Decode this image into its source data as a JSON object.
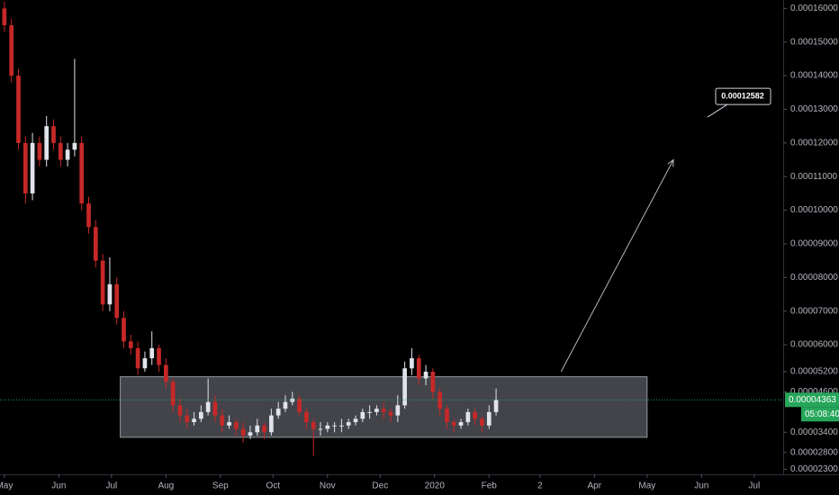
{
  "chart_data": {
    "type": "candlestick",
    "x": [
      0,
      4,
      8,
      12,
      16,
      20,
      24,
      28,
      32,
      36,
      40,
      44,
      48,
      52,
      56,
      60,
      64,
      68,
      72,
      76,
      80,
      84,
      88,
      92,
      96,
      100,
      104,
      108,
      112,
      116,
      120,
      124,
      128,
      132,
      136,
      140,
      144,
      148,
      152,
      156,
      160,
      164,
      168,
      172,
      176,
      180,
      184,
      188,
      192,
      196,
      200,
      204,
      208,
      212,
      216,
      220,
      224,
      228,
      232,
      236,
      240,
      244,
      248,
      252,
      256,
      260,
      264,
      268,
      272,
      276,
      280
    ],
    "open": [
      0.00016,
      0.000155,
      0.00014,
      0.00012,
      0.000105,
      0.00012,
      0.000115,
      0.000125,
      0.00012,
      0.000115,
      0.000118,
      0.00012,
      0.000102,
      9.5e-05,
      8.5e-05,
      7.2e-05,
      7.8e-05,
      6.8e-05,
      6.1e-05,
      5.9e-05,
      5.3e-05,
      5.6e-05,
      5.9e-05,
      5.4e-05,
      4.9e-05,
      4.2e-05,
      3.9e-05,
      3.7e-05,
      3.8e-05,
      4e-05,
      4.3e-05,
      3.9e-05,
      3.6e-05,
      3.7e-05,
      3.5e-05,
      3.3e-05,
      3.4e-05,
      3.6e-05,
      3.4e-05,
      3.9e-05,
      4.1e-05,
      4.3e-05,
      4.4e-05,
      4e-05,
      3.7e-05,
      3.5e-05,
      3.5e-05,
      3.6e-05,
      3.6e-05,
      3.6e-05,
      3.7e-05,
      3.8e-05,
      4e-05,
      4e-05,
      4.1e-05,
      4e-05,
      3.9e-05,
      4.2e-05,
      5.3e-05,
      5.6e-05,
      5e-05,
      5.2e-05,
      4.6e-05,
      4.1e-05,
      3.7e-05,
      3.6e-05,
      3.7e-05,
      4e-05,
      3.8e-05,
      3.6e-05,
      4e-05
    ],
    "high": [
      0.000162,
      0.000157,
      0.000142,
      0.000122,
      0.000123,
      0.000122,
      0.000128,
      0.000127,
      0.000122,
      0.00012,
      0.000145,
      0.000122,
      0.000104,
      9.7e-05,
      8.7e-05,
      8.6e-05,
      8e-05,
      7e-05,
      6.3e-05,
      6.1e-05,
      5.8e-05,
      6.4e-05,
      6e-05,
      5.6e-05,
      5e-05,
      4.4e-05,
      4.1e-05,
      4e-05,
      4.2e-05,
      5e-05,
      4.5e-05,
      4.1e-05,
      3.9e-05,
      3.8e-05,
      3.7e-05,
      3.6e-05,
      3.8e-05,
      3.7e-05,
      4.1e-05,
      4.3e-05,
      4.5e-05,
      4.6e-05,
      4.5e-05,
      4.1e-05,
      3.8e-05,
      3.7e-05,
      3.7e-05,
      3.7e-05,
      3.8e-05,
      3.8e-05,
      3.9e-05,
      4.1e-05,
      4.2e-05,
      4.2e-05,
      4.3e-05,
      4.1e-05,
      4.5e-05,
      5.5e-05,
      5.9e-05,
      5.7e-05,
      5.4e-05,
      5.3e-05,
      4.7e-05,
      4.2e-05,
      3.8e-05,
      3.8e-05,
      4.1e-05,
      4.1e-05,
      3.9e-05,
      4.2e-05,
      4.7e-05
    ],
    "low": [
      0.000153,
      0.000138,
      0.000118,
      0.000102,
      0.000103,
      0.000113,
      0.000113,
      0.000118,
      0.000113,
      0.000113,
      0.000116,
      0.0001,
      9.3e-05,
      8.3e-05,
      7e-05,
      7e-05,
      6.6e-05,
      5.9e-05,
      5.7e-05,
      5.1e-05,
      5.2e-05,
      5.4e-05,
      5.2e-05,
      4.7e-05,
      4e-05,
      3.7e-05,
      3.5e-05,
      3.6e-05,
      3.7e-05,
      3.9e-05,
      3.7e-05,
      3.4e-05,
      3.5e-05,
      3.3e-05,
      3.1e-05,
      3.2e-05,
      3.3e-05,
      3.2e-05,
      3.3e-05,
      3.8e-05,
      4e-05,
      4.2e-05,
      3.9e-05,
      3.5e-05,
      2.7e-05,
      3.3e-05,
      3.4e-05,
      3.4e-05,
      3.4e-05,
      3.5e-05,
      3.6e-05,
      3.7e-05,
      3.8e-05,
      3.9e-05,
      3.8e-05,
      3.7e-05,
      3.7e-05,
      4.1e-05,
      5.1e-05,
      4.8e-05,
      4.8e-05,
      4.4e-05,
      3.9e-05,
      3.5e-05,
      3.4e-05,
      3.5e-05,
      3.6e-05,
      3.6e-05,
      3.4e-05,
      3.5e-05,
      3.9e-05
    ],
    "close": [
      0.000155,
      0.00014,
      0.00012,
      0.000105,
      0.00012,
      0.000115,
      0.000125,
      0.00012,
      0.000115,
      0.000118,
      0.00012,
      0.000102,
      9.5e-05,
      8.5e-05,
      7.2e-05,
      7.8e-05,
      6.8e-05,
      6.1e-05,
      5.9e-05,
      5.3e-05,
      5.6e-05,
      5.9e-05,
      5.4e-05,
      4.9e-05,
      4.2e-05,
      3.9e-05,
      3.7e-05,
      3.8e-05,
      4e-05,
      4.3e-05,
      3.9e-05,
      3.6e-05,
      3.7e-05,
      3.5e-05,
      3.3e-05,
      3.4e-05,
      3.6e-05,
      3.4e-05,
      3.9e-05,
      4.1e-05,
      4.3e-05,
      4.4e-05,
      4e-05,
      3.7e-05,
      3.5e-05,
      3.5e-05,
      3.6e-05,
      3.6e-05,
      3.6e-05,
      3.7e-05,
      3.8e-05,
      4e-05,
      4e-05,
      4.1e-05,
      4e-05,
      3.9e-05,
      4.2e-05,
      5.3e-05,
      5.6e-05,
      5e-05,
      5.2e-05,
      4.6e-05,
      4.1e-05,
      3.7e-05,
      3.6e-05,
      3.7e-05,
      4e-05,
      3.8e-05,
      3.6e-05,
      4e-05,
      4.363e-05
    ],
    "up_color": "#e0e3eb",
    "down_color": "#c62828",
    "xlim": [
      -2.5,
      443.5
    ],
    "xticks": [
      {
        "value": 0,
        "label": "May"
      },
      {
        "value": 31,
        "label": "Jun"
      },
      {
        "value": 61,
        "label": "Jul"
      },
      {
        "value": 92,
        "label": "Aug"
      },
      {
        "value": 123,
        "label": "Sep"
      },
      {
        "value": 153,
        "label": "Oct"
      },
      {
        "value": 184,
        "label": "Nov"
      },
      {
        "value": 214,
        "label": "Dec"
      },
      {
        "value": 245,
        "label": "2020"
      },
      {
        "value": 276,
        "label": "Feb"
      },
      {
        "value": 305,
        "label": "2"
      },
      {
        "value": 336,
        "label": "Apr"
      },
      {
        "value": 366,
        "label": "May"
      },
      {
        "value": 397,
        "label": "Jun"
      },
      {
        "value": 427,
        "label": "Jul"
      }
    ],
    "ylim": [
      2.15e-05,
      0.0001625
    ],
    "yticks": [
      {
        "value": 2.3e-05,
        "label": "0.00002300"
      },
      {
        "value": 2.8e-05,
        "label": "0.00002800"
      },
      {
        "value": 3.4e-05,
        "label": "0.00003400"
      },
      {
        "value": 4.6e-05,
        "label": "0.00004600"
      },
      {
        "value": 5.2e-05,
        "label": "0.00005200"
      },
      {
        "value": 6e-05,
        "label": "0.00006000"
      },
      {
        "value": 7e-05,
        "label": "0.00007000"
      },
      {
        "value": 8e-05,
        "label": "0.00008000"
      },
      {
        "value": 9e-05,
        "label": "0.00009000"
      },
      {
        "value": 0.0001,
        "label": "0.00010000"
      },
      {
        "value": 0.00011,
        "label": "0.00011000"
      },
      {
        "value": 0.00012,
        "label": "0.00012000"
      },
      {
        "value": 0.00013,
        "label": "0.00013000"
      },
      {
        "value": 0.00014,
        "label": "0.00014000"
      },
      {
        "value": 0.00015,
        "label": "0.00015000"
      },
      {
        "value": 0.00016,
        "label": "0.00016000"
      }
    ],
    "last_price": {
      "value": 4.363e-05,
      "label": "0.00004363",
      "color": "#26a65b"
    },
    "countdown": "05:08:40",
    "zone": {
      "x": [
        66,
        366
      ],
      "y": [
        3.25e-05,
        5.05e-05
      ]
    },
    "arrow": {
      "x": [
        317,
        381
      ],
      "y": [
        5.2e-05,
        0.000115
      ]
    },
    "target": {
      "value": 0.00012582,
      "label": "0.00012582"
    }
  }
}
